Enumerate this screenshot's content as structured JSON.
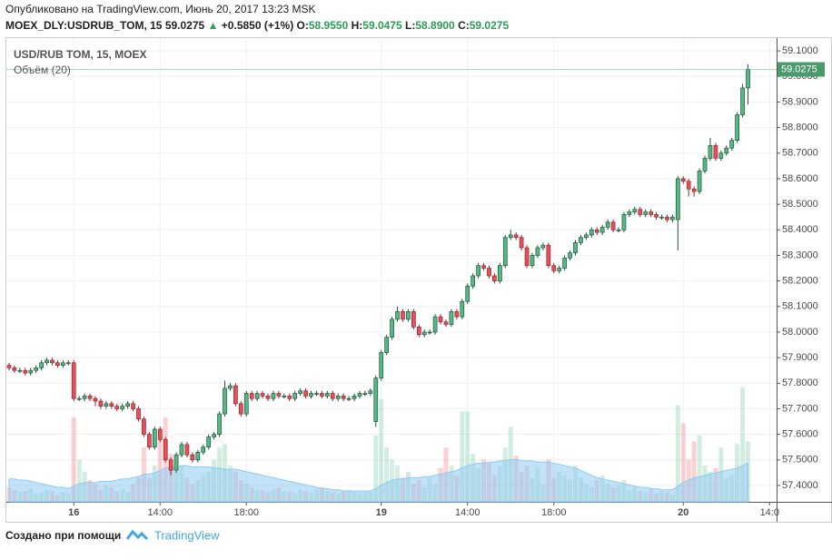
{
  "header": {
    "published": "Опубликовано на TradingView.com, Июнь 20, 2017 13:23 MSK",
    "symbol": "MOEX_DLY:USDRUB_TOM, 15",
    "last": "59.0275",
    "arrow": "▲",
    "change": "+0.5850 (+1%)",
    "o_label": "O:",
    "o": "58.9550",
    "h_label": "H:",
    "h": "59.0475",
    "l_label": "L:",
    "l": "58.8900",
    "c_label": "C:",
    "c": "59.0275"
  },
  "footer": {
    "created": "Создано при помощи",
    "brand": "TradingView"
  },
  "chart_data": {
    "type": "candlestick",
    "series_label": "USD/RUB TOM, 15, MOEX",
    "volume_label": "Объём (20)",
    "up_color": "#53b987",
    "down_color": "#eb4d5c",
    "volume_ma_color": "#8fcbf3",
    "open": [
      57.87,
      57.86,
      57.85,
      57.85,
      57.84,
      57.85,
      57.86,
      57.88,
      57.89,
      57.88,
      57.87,
      57.88,
      57.88,
      57.74,
      57.74,
      57.75,
      57.74,
      57.73,
      57.71,
      57.72,
      57.71,
      57.7,
      57.71,
      57.72,
      57.7,
      57.66,
      57.6,
      57.55,
      57.62,
      57.58,
      57.5,
      57.46,
      57.52,
      57.56,
      57.52,
      57.5,
      57.53,
      57.55,
      57.59,
      57.6,
      57.68,
      57.78,
      57.79,
      57.72,
      57.68,
      57.76,
      57.74,
      57.76,
      57.75,
      57.74,
      57.76,
      57.75,
      57.75,
      57.74,
      57.76,
      57.77,
      57.75,
      57.76,
      57.76,
      57.75,
      57.76,
      57.74,
      57.75,
      57.74,
      57.74,
      57.75,
      57.76,
      57.76,
      57.65,
      57.82,
      57.92,
      57.98,
      58.05,
      58.08,
      58.05,
      58.08,
      58.02,
      57.99,
      58.0,
      58.0,
      58.06,
      58.04,
      58.03,
      58.08,
      58.06,
      58.12,
      58.18,
      58.22,
      58.26,
      58.25,
      58.22,
      58.2,
      58.26,
      58.37,
      58.38,
      58.37,
      58.33,
      58.26,
      58.3,
      58.33,
      58.34,
      58.26,
      58.24,
      58.25,
      58.29,
      58.31,
      58.35,
      58.37,
      58.38,
      58.4,
      58.39,
      58.41,
      58.43,
      58.4,
      58.4,
      58.46,
      58.47,
      58.48,
      58.46,
      58.47,
      58.46,
      58.45,
      58.45,
      58.44,
      58.44,
      58.6,
      58.59,
      58.56,
      58.55,
      58.63,
      58.68,
      58.73,
      58.68,
      58.7,
      58.72,
      58.75,
      58.85,
      58.955
    ],
    "high": [
      57.88,
      57.87,
      57.86,
      57.86,
      57.86,
      57.87,
      57.89,
      57.9,
      57.9,
      57.89,
      57.89,
      57.89,
      57.89,
      57.75,
      57.76,
      57.76,
      57.75,
      57.74,
      57.73,
      57.73,
      57.72,
      57.72,
      57.73,
      57.73,
      57.71,
      57.67,
      57.61,
      57.63,
      57.63,
      57.59,
      57.51,
      57.53,
      57.57,
      57.57,
      57.53,
      57.54,
      57.56,
      57.6,
      57.61,
      57.69,
      57.81,
      57.8,
      57.8,
      57.73,
      57.77,
      57.77,
      57.77,
      57.77,
      57.76,
      57.77,
      57.77,
      57.76,
      57.76,
      57.77,
      57.78,
      57.78,
      57.77,
      57.77,
      57.77,
      57.77,
      57.77,
      57.76,
      57.76,
      57.75,
      57.76,
      57.77,
      57.77,
      57.78,
      57.83,
      57.93,
      57.99,
      58.06,
      58.1,
      58.09,
      58.09,
      58.09,
      58.03,
      58.01,
      58.01,
      58.07,
      58.07,
      58.05,
      58.09,
      58.09,
      58.13,
      58.19,
      58.23,
      58.27,
      58.27,
      58.26,
      58.23,
      58.27,
      58.38,
      58.4,
      58.39,
      58.38,
      58.34,
      58.31,
      58.34,
      58.35,
      58.35,
      58.27,
      58.26,
      58.3,
      58.32,
      58.36,
      58.38,
      58.39,
      58.41,
      58.41,
      58.42,
      58.44,
      58.44,
      58.41,
      58.47,
      58.48,
      58.49,
      58.49,
      58.48,
      58.48,
      58.47,
      58.46,
      58.46,
      58.46,
      58.61,
      58.61,
      58.6,
      58.57,
      58.64,
      58.69,
      58.76,
      58.74,
      58.71,
      58.73,
      58.76,
      58.86,
      58.97,
      59.0475
    ],
    "low": [
      57.85,
      57.84,
      57.84,
      57.83,
      57.83,
      57.84,
      57.85,
      57.87,
      57.87,
      57.86,
      57.86,
      57.87,
      57.73,
      57.73,
      57.73,
      57.73,
      57.71,
      57.7,
      57.7,
      57.7,
      57.69,
      57.69,
      57.7,
      57.69,
      57.65,
      57.59,
      57.54,
      57.54,
      57.57,
      57.49,
      57.44,
      57.45,
      57.51,
      57.51,
      57.49,
      57.49,
      57.52,
      57.54,
      57.58,
      57.59,
      57.67,
      57.77,
      57.71,
      57.67,
      57.67,
      57.73,
      57.73,
      57.74,
      57.73,
      57.73,
      57.74,
      57.74,
      57.73,
      57.73,
      57.75,
      57.74,
      57.74,
      57.75,
      57.74,
      57.74,
      57.73,
      57.73,
      57.73,
      57.73,
      57.73,
      57.74,
      57.75,
      57.75,
      57.63,
      57.81,
      57.91,
      57.97,
      58.04,
      58.04,
      58.04,
      58.01,
      57.98,
      57.98,
      57.99,
      57.99,
      58.03,
      58.02,
      58.02,
      58.05,
      58.05,
      58.11,
      58.17,
      58.21,
      58.24,
      58.21,
      58.19,
      58.19,
      58.25,
      58.36,
      58.36,
      58.32,
      58.25,
      58.25,
      58.29,
      58.32,
      58.25,
      58.23,
      58.23,
      58.24,
      58.28,
      58.3,
      58.34,
      58.36,
      58.37,
      58.38,
      58.38,
      58.4,
      58.39,
      58.39,
      58.39,
      58.45,
      58.46,
      58.45,
      58.45,
      58.45,
      58.44,
      58.44,
      58.43,
      58.43,
      58.32,
      58.58,
      58.53,
      58.53,
      58.54,
      58.62,
      58.67,
      58.67,
      58.67,
      58.69,
      58.71,
      58.74,
      58.84,
      58.89
    ],
    "close": [
      57.86,
      57.85,
      57.85,
      57.84,
      57.85,
      57.86,
      57.88,
      57.89,
      57.88,
      57.87,
      57.88,
      57.88,
      57.74,
      57.74,
      57.75,
      57.74,
      57.73,
      57.71,
      57.72,
      57.71,
      57.7,
      57.71,
      57.72,
      57.7,
      57.66,
      57.6,
      57.55,
      57.62,
      57.58,
      57.5,
      57.46,
      57.52,
      57.56,
      57.52,
      57.5,
      57.53,
      57.55,
      57.59,
      57.6,
      57.68,
      57.78,
      57.79,
      57.72,
      57.68,
      57.76,
      57.74,
      57.76,
      57.75,
      57.74,
      57.76,
      57.75,
      57.75,
      57.74,
      57.76,
      57.77,
      57.75,
      57.76,
      57.76,
      57.75,
      57.76,
      57.74,
      57.75,
      57.74,
      57.74,
      57.75,
      57.76,
      57.76,
      57.77,
      57.82,
      57.92,
      57.98,
      58.05,
      58.08,
      58.05,
      58.08,
      58.02,
      57.99,
      58.0,
      58.0,
      58.06,
      58.04,
      58.03,
      58.08,
      58.06,
      58.12,
      58.18,
      58.22,
      58.26,
      58.25,
      58.22,
      58.2,
      58.26,
      58.37,
      58.38,
      58.37,
      58.33,
      58.26,
      58.3,
      58.33,
      58.34,
      58.26,
      58.24,
      58.25,
      58.29,
      58.31,
      58.35,
      58.37,
      58.38,
      58.4,
      58.39,
      58.41,
      58.43,
      58.4,
      58.4,
      58.46,
      58.47,
      58.48,
      58.46,
      58.47,
      58.46,
      58.45,
      58.45,
      58.44,
      58.45,
      58.6,
      58.59,
      58.56,
      58.55,
      58.63,
      58.68,
      58.73,
      58.68,
      58.7,
      58.72,
      58.75,
      58.85,
      58.955,
      59.0275
    ],
    "volume": [
      12,
      10,
      8,
      9,
      11,
      7,
      8,
      10,
      9,
      6,
      8,
      7,
      70,
      35,
      25,
      18,
      15,
      10,
      14,
      12,
      9,
      11,
      8,
      15,
      20,
      45,
      20,
      30,
      55,
      70,
      40,
      25,
      30,
      20,
      15,
      18,
      22,
      25,
      35,
      45,
      48,
      30,
      25,
      18,
      15,
      12,
      10,
      9,
      8,
      10,
      12,
      9,
      8,
      7,
      10,
      9,
      8,
      10,
      12,
      9,
      8,
      7,
      9,
      10,
      8,
      7,
      9,
      8,
      55,
      85,
      45,
      35,
      30,
      20,
      25,
      15,
      18,
      12,
      20,
      15,
      28,
      45,
      30,
      22,
      75,
      75,
      40,
      28,
      35,
      32,
      22,
      30,
      45,
      62,
      38,
      25,
      30,
      20,
      28,
      15,
      35,
      20,
      25,
      22,
      18,
      30,
      20,
      15,
      12,
      18,
      22,
      15,
      12,
      14,
      18,
      10,
      12,
      9,
      8,
      11,
      7,
      9,
      8,
      6,
      80,
      65,
      35,
      50,
      55,
      30,
      25,
      28,
      45,
      20,
      22,
      48,
      95,
      50
    ],
    "volume_ma": [
      19,
      19,
      18,
      18,
      17,
      16,
      15,
      14,
      13,
      12,
      12,
      11,
      13,
      15,
      16,
      16,
      16,
      17,
      17,
      17,
      18,
      19,
      19,
      20,
      21,
      23,
      23,
      24,
      26,
      28,
      29,
      29,
      30,
      30,
      29,
      29,
      29,
      29,
      28,
      28,
      27,
      27,
      27,
      26,
      25,
      24,
      23,
      22,
      21,
      20,
      19,
      18,
      17,
      16,
      15,
      14,
      13,
      12,
      11,
      11,
      10,
      10,
      9,
      9,
      9,
      9,
      9,
      9,
      11,
      14,
      16,
      18,
      19,
      19,
      20,
      20,
      20,
      21,
      21,
      22,
      23,
      24,
      25,
      26,
      28,
      30,
      31,
      32,
      32,
      33,
      33,
      34,
      34,
      35,
      35,
      34,
      34,
      34,
      33,
      33,
      33,
      32,
      31,
      30,
      29,
      28,
      26,
      24,
      22,
      20,
      19,
      18,
      17,
      16,
      15,
      14,
      13,
      12,
      12,
      11,
      11,
      10,
      10,
      10,
      13,
      16,
      18,
      20,
      21,
      22,
      23,
      24,
      25,
      26,
      27,
      28,
      30,
      32
    ],
    "xlim": [
      -0.5,
      142.3
    ],
    "ylim": [
      57.336,
      59.15
    ],
    "vlim": [
      0,
      100
    ],
    "grid": true,
    "xticks": [
      {
        "value": 12,
        "label": "16"
      },
      {
        "value": 28,
        "label": "14:00"
      },
      {
        "value": 44,
        "label": "18:00"
      },
      {
        "value": 69,
        "label": "19"
      },
      {
        "value": 85,
        "label": "14:00"
      },
      {
        "value": 101,
        "label": "18:00"
      },
      {
        "value": 125,
        "label": "20"
      },
      {
        "value": 141,
        "label": "14:0"
      }
    ],
    "yticks": [
      {
        "value": 57.4,
        "label": "57.4000"
      },
      {
        "value": 57.5,
        "label": "57.5000"
      },
      {
        "value": 57.6,
        "label": "57.6000"
      },
      {
        "value": 57.7,
        "label": "57.7000"
      },
      {
        "value": 57.8,
        "label": "57.8000"
      },
      {
        "value": 57.9,
        "label": "57.9000"
      },
      {
        "value": 58,
        "label": "58.0000"
      },
      {
        "value": 58.1,
        "label": "58.1000"
      },
      {
        "value": 58.2,
        "label": "58.2000"
      },
      {
        "value": 58.3,
        "label": "58.3000"
      },
      {
        "value": 58.4,
        "label": "58.4000"
      },
      {
        "value": 58.5,
        "label": "58.5000"
      },
      {
        "value": 58.6,
        "label": "58.6000"
      },
      {
        "value": 58.7,
        "label": "58.7000"
      },
      {
        "value": 58.8,
        "label": "58.8000"
      },
      {
        "value": 58.9,
        "label": "58.9000"
      },
      {
        "value": 59,
        "label": "59.0000"
      },
      {
        "value": 59.1,
        "label": "59.1000"
      }
    ]
  }
}
